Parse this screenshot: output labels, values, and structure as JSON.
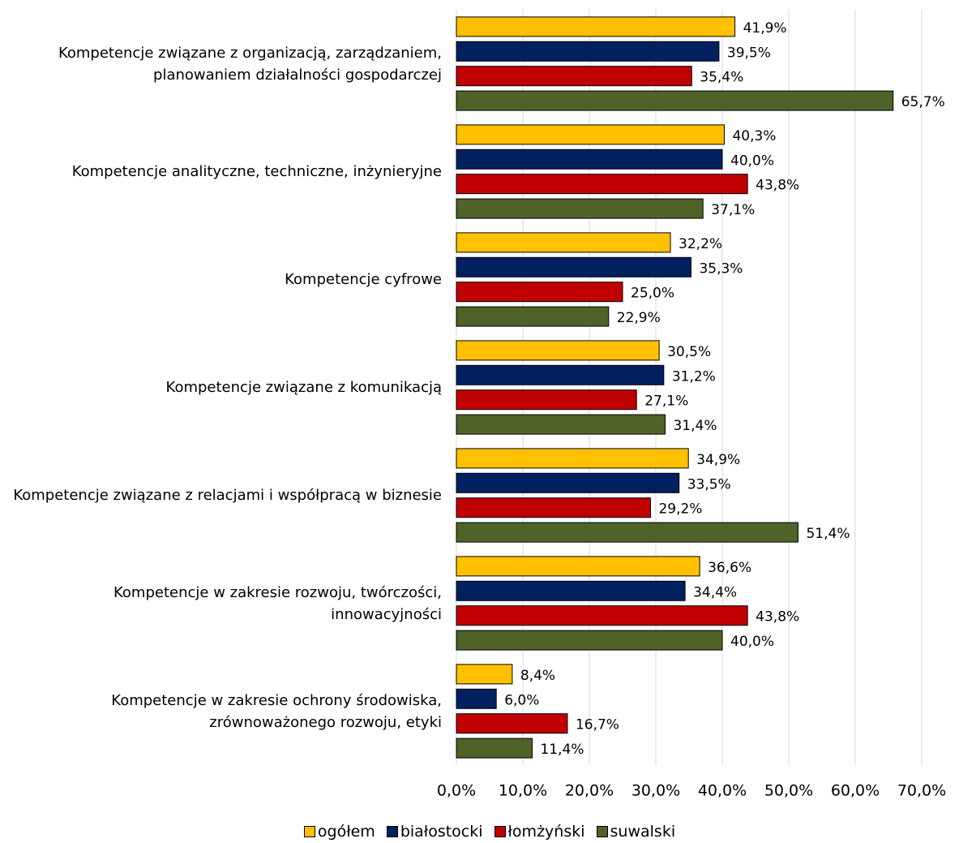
{
  "chart_data": {
    "type": "bar",
    "orientation": "horizontal",
    "categories": [
      "Kompetencje związane z organizacją, zarządzaniem, planowaniem działalności gospodarczej",
      "Kompetencje analityczne, techniczne, inżynieryjne",
      "Kompetencje cyfrowe",
      "Kompetencje związane z komunikacją",
      "Kompetencje związane z relacjami i współpracą w biznesie",
      "Kompetencje w zakresie rozwoju, twórczości, innowacyjności",
      "Kompetencje w zakresie ochrony środowiska, zrównoważonego rozwoju, etyki"
    ],
    "series": [
      {
        "name": "ogółem",
        "color": "#FFC000",
        "values": [
          41.9,
          40.3,
          32.2,
          30.5,
          34.9,
          36.6,
          8.4
        ],
        "value_labels": [
          "41,9%",
          "40,3%",
          "32,2%",
          "30,5%",
          "34,9%",
          "36,6%",
          "8,4%"
        ]
      },
      {
        "name": "białostocki",
        "color": "#002060",
        "values": [
          39.5,
          40.0,
          35.3,
          31.2,
          33.5,
          34.4,
          6.0
        ],
        "value_labels": [
          "39,5%",
          "40,0%",
          "35,3%",
          "31,2%",
          "33,5%",
          "34,4%",
          "6,0%"
        ]
      },
      {
        "name": "łomżyński",
        "color": "#C00000",
        "values": [
          35.4,
          43.8,
          25.0,
          27.1,
          29.2,
          43.8,
          16.7
        ],
        "value_labels": [
          "35,4%",
          "43,8%",
          "25,0%",
          "27,1%",
          "29,2%",
          "43,8%",
          "16,7%"
        ]
      },
      {
        "name": "suwalski",
        "color": "#4F6228",
        "values": [
          65.7,
          37.1,
          22.9,
          31.4,
          51.4,
          40.0,
          11.4
        ],
        "value_labels": [
          "65,7%",
          "37,1%",
          "22,9%",
          "31,4%",
          "51,4%",
          "40,0%",
          "11,4%"
        ]
      }
    ],
    "xlim": [
      0,
      70
    ],
    "xticks": [
      {
        "value": 0,
        "label": "0,0%"
      },
      {
        "value": 10,
        "label": "10,0%"
      },
      {
        "value": 20,
        "label": "20,0%"
      },
      {
        "value": 30,
        "label": "30,0%"
      },
      {
        "value": 40,
        "label": "40,0%"
      },
      {
        "value": 50,
        "label": "50,0%"
      },
      {
        "value": 60,
        "label": "60,0%"
      },
      {
        "value": 70,
        "label": "70,0%"
      }
    ],
    "grid": true,
    "legend": "bottom"
  }
}
